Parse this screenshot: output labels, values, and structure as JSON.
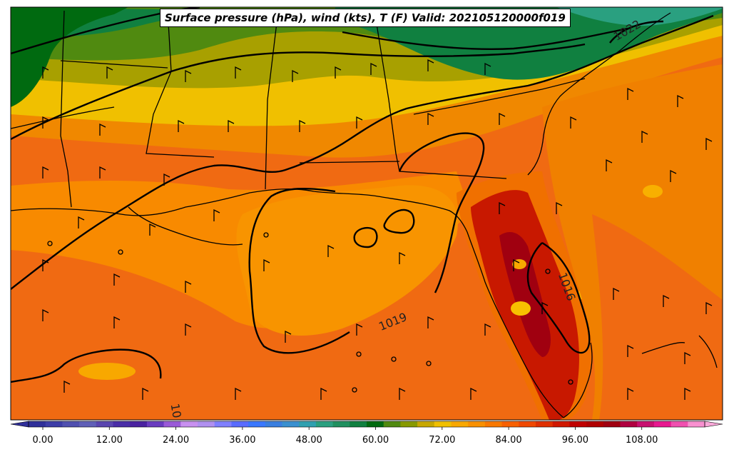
{
  "title": "Surface pressure (hPa), wind (kts), T (F) Valid: 202105120000f019",
  "colorbar": {
    "ticks": [
      "0.00",
      "12.00",
      "24.00",
      "36.00",
      "48.00",
      "60.00",
      "72.00",
      "84.00",
      "96.00",
      "108.00"
    ],
    "colors": [
      "#2f2f9a",
      "#3d3da8",
      "#5050b0",
      "#6060b8",
      "#5a46b0",
      "#4a2ea8",
      "#4a22a0",
      "#6a3cc0",
      "#9a5ad8",
      "#c890f0",
      "#b090f0",
      "#8080ff",
      "#5a6cff",
      "#3a78ff",
      "#3a7fe0",
      "#3a90d0",
      "#2fa0b0",
      "#2aa080",
      "#209060",
      "#108040",
      "#006a10",
      "#508a10",
      "#889a00",
      "#c8a800",
      "#f0c000",
      "#f8a800",
      "#f89000",
      "#f87800",
      "#f86000",
      "#f04800",
      "#e03000",
      "#d01800",
      "#c00000",
      "#b00000",
      "#a00010",
      "#b00040",
      "#c81070",
      "#e81890",
      "#f050b0",
      "#f890d0"
    ]
  },
  "contour_labels": [
    "1019",
    "1022",
    "1016",
    "10"
  ],
  "colors": {
    "gulf_water": "#f06a12",
    "land_warm": "#f08800",
    "land_mid": "#f0c000",
    "land_olive": "#a8a000",
    "land_green": "#108030",
    "florida_hot": "#c81800"
  }
}
